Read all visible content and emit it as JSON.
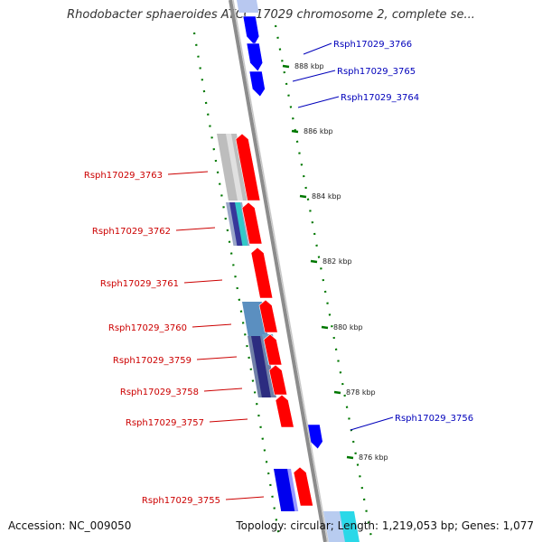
{
  "title": "Rhodobacter sphaeroides ATCC 17029 chromosome 2, complete se...",
  "accession": "Accession: NC_009050",
  "summary": "Topology: circular; Length: 1,219,053 bp; Genes: 1,077",
  "colors": {
    "forward_gene": "#ff0000",
    "reverse_gene": "#0000ff",
    "forward_label": "#cc0000",
    "reverse_label": "#0000bb",
    "backbone": "#8c8c8c",
    "tick": "#007700"
  },
  "ticks": [
    {
      "label": "888 kbp"
    },
    {
      "label": "886 kbp"
    },
    {
      "label": "884 kbp"
    },
    {
      "label": "882 kbp"
    },
    {
      "label": "880 kbp"
    },
    {
      "label": "878 kbp"
    },
    {
      "label": "876 kbp"
    }
  ],
  "genes": [
    {
      "name": "Rsph17029_3766",
      "strand": "reverse"
    },
    {
      "name": "Rsph17029_3765",
      "strand": "reverse"
    },
    {
      "name": "Rsph17029_3764",
      "strand": "reverse"
    },
    {
      "name": "Rsph17029_3763",
      "strand": "forward"
    },
    {
      "name": "Rsph17029_3762",
      "strand": "forward"
    },
    {
      "name": "Rsph17029_3761",
      "strand": "forward"
    },
    {
      "name": "Rsph17029_3760",
      "strand": "forward"
    },
    {
      "name": "Rsph17029_3759",
      "strand": "forward"
    },
    {
      "name": "Rsph17029_3758",
      "strand": "forward"
    },
    {
      "name": "Rsph17029_3757",
      "strand": "forward"
    },
    {
      "name": "Rsph17029_3756",
      "strand": "reverse"
    },
    {
      "name": "Rsph17029_3755",
      "strand": "forward"
    }
  ]
}
